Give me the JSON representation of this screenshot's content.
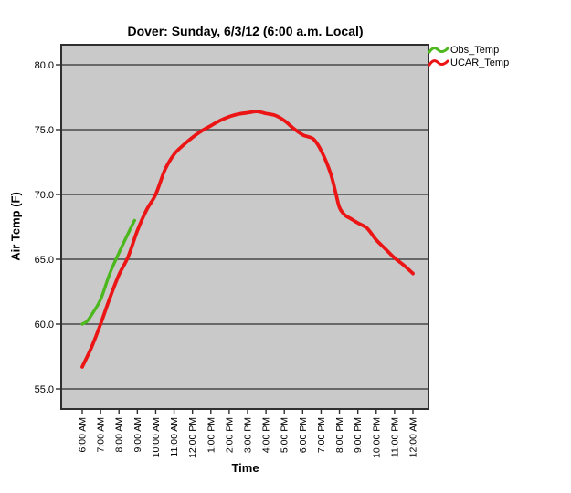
{
  "chart_data": {
    "type": "line",
    "title": "Dover: Sunday, 6/3/12 (6:00 a.m. Local)",
    "xlabel": "Time",
    "ylabel": "Air Temp (F)",
    "plot_background_color": "#C9C9C9",
    "grid_color": "#2F2F2F",
    "grid": "horizontal",
    "legend_position": "top-right-outside",
    "ylim": [
      53.5,
      81.6
    ],
    "yticks": [
      80.0,
      75.0,
      70.0,
      65.0,
      60.0,
      55.0
    ],
    "ytick_labels": [
      "80.0",
      "75.0",
      "70.0",
      "65.0",
      "60.0",
      "55.0"
    ],
    "xtick_hours": [
      6,
      7,
      8,
      9,
      10,
      11,
      12,
      13,
      14,
      15,
      16,
      17,
      18,
      19,
      20,
      21,
      22,
      23,
      24
    ],
    "xtick_labels": [
      "6:00 AM",
      "7:00 AM",
      "8:00 AM",
      "9:00 AM",
      "10:00 AM",
      "11:00 AM",
      "12:00 PM",
      "1:00 PM",
      "2:00 PM",
      "3:00 PM",
      "4:00 PM",
      "5:00 PM",
      "6:00 PM",
      "7:00 PM",
      "8:00 PM",
      "9:00 PM",
      "10:00 PM",
      "11:00 PM",
      "12:00 AM"
    ],
    "series": [
      {
        "name": "Obs_Temp",
        "color": "#4CB81E",
        "points": [
          [
            6.0,
            60.0
          ],
          [
            6.25,
            60.2
          ],
          [
            6.5,
            60.7
          ],
          [
            7.0,
            61.9
          ],
          [
            7.5,
            63.9
          ],
          [
            8.0,
            65.5
          ],
          [
            8.5,
            67.0
          ],
          [
            8.85,
            68.0
          ]
        ]
      },
      {
        "name": "UCAR_Temp",
        "color": "#EC1515",
        "points": [
          [
            6.0,
            56.7
          ],
          [
            6.5,
            58.2
          ],
          [
            7.0,
            60.0
          ],
          [
            7.5,
            62.0
          ],
          [
            8.0,
            63.8
          ],
          [
            8.5,
            65.2
          ],
          [
            9.0,
            67.2
          ],
          [
            9.5,
            68.8
          ],
          [
            10.0,
            70.0
          ],
          [
            10.5,
            71.9
          ],
          [
            11.0,
            73.1
          ],
          [
            11.5,
            73.8
          ],
          [
            12.0,
            74.4
          ],
          [
            12.5,
            74.9
          ],
          [
            13.0,
            75.3
          ],
          [
            13.5,
            75.7
          ],
          [
            14.0,
            76.0
          ],
          [
            14.5,
            76.2
          ],
          [
            15.0,
            76.3
          ],
          [
            15.5,
            76.4
          ],
          [
            16.0,
            76.25
          ],
          [
            16.5,
            76.1
          ],
          [
            17.0,
            75.7
          ],
          [
            17.5,
            75.1
          ],
          [
            18.0,
            74.6
          ],
          [
            18.3,
            74.45
          ],
          [
            18.6,
            74.25
          ],
          [
            19.0,
            73.4
          ],
          [
            19.5,
            71.7
          ],
          [
            19.8,
            70.1
          ],
          [
            20.0,
            69.0
          ],
          [
            20.3,
            68.4
          ],
          [
            20.6,
            68.15
          ],
          [
            21.0,
            67.8
          ],
          [
            21.5,
            67.4
          ],
          [
            22.0,
            66.5
          ],
          [
            22.5,
            65.8
          ],
          [
            23.0,
            65.1
          ],
          [
            23.5,
            64.55
          ],
          [
            24.0,
            63.9
          ]
        ]
      }
    ]
  }
}
